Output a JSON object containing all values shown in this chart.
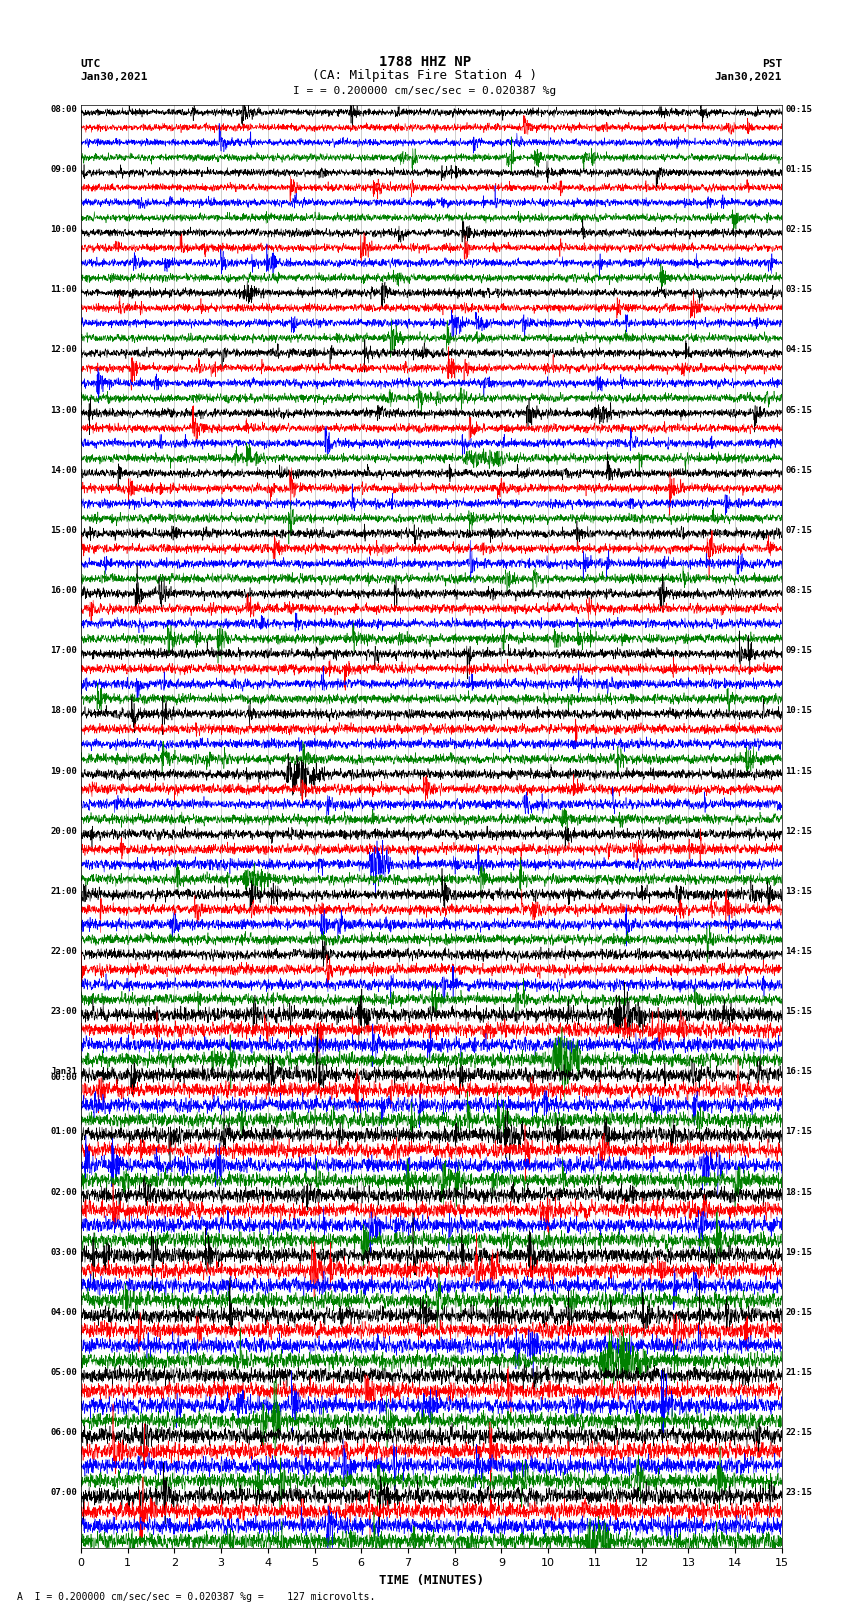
{
  "title_line1": "1788 HHZ NP",
  "title_line2": "(CA: Milpitas Fire Station 4 )",
  "scale_text": "= 0.200000 cm/sec/sec = 0.020387 %g",
  "bottom_text": "= 0.200000 cm/sec/sec = 0.020387 %g =    127 microvolts.",
  "left_label": "UTC",
  "left_date": "Jan30,2021",
  "right_label": "PST",
  "right_date": "Jan30,2021",
  "xlabel": "TIME (MINUTES)",
  "utc_times_left": [
    "08:00",
    "09:00",
    "10:00",
    "11:00",
    "12:00",
    "13:00",
    "14:00",
    "15:00",
    "16:00",
    "17:00",
    "18:00",
    "19:00",
    "20:00",
    "21:00",
    "22:00",
    "23:00",
    "Jan31\n00:00",
    "01:00",
    "02:00",
    "03:00",
    "04:00",
    "05:00",
    "06:00",
    "07:00"
  ],
  "pst_times_right": [
    "00:15",
    "01:15",
    "02:15",
    "03:15",
    "04:15",
    "05:15",
    "06:15",
    "07:15",
    "08:15",
    "09:15",
    "10:15",
    "11:15",
    "12:15",
    "13:15",
    "14:15",
    "15:15",
    "16:15",
    "17:15",
    "18:15",
    "19:15",
    "20:15",
    "21:15",
    "22:15",
    "23:15"
  ],
  "n_rows": 24,
  "traces_per_row": 4,
  "colors": [
    "black",
    "red",
    "blue",
    "green"
  ],
  "bg_color": "#ffffff",
  "x_ticks": [
    0,
    1,
    2,
    3,
    4,
    5,
    6,
    7,
    8,
    9,
    10,
    11,
    12,
    13,
    14,
    15
  ],
  "x_min": 0,
  "x_max": 15,
  "seed": 42
}
